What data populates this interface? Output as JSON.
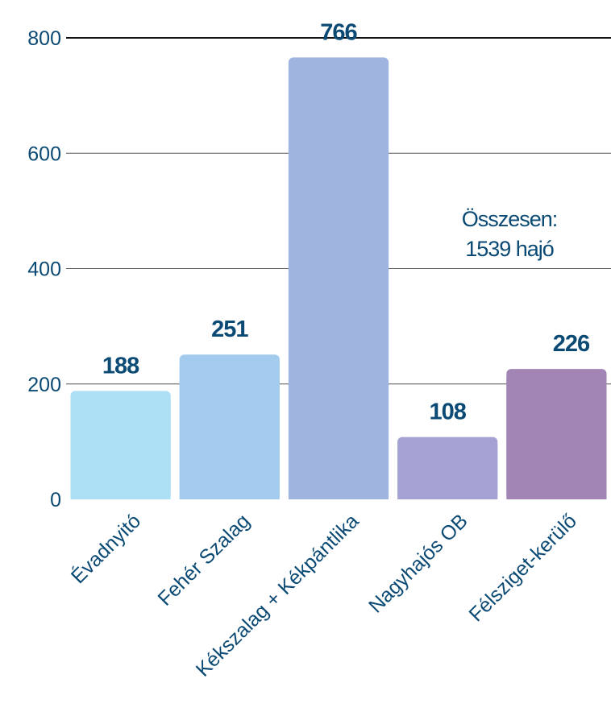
{
  "chart_data": {
    "type": "bar",
    "title": "",
    "xlabel": "",
    "ylabel": "",
    "ylim": [
      0,
      800
    ],
    "yticks": [
      0,
      200,
      400,
      600,
      800
    ],
    "grid": true,
    "categories": [
      "Évadnyitó",
      "Fehér Szalag",
      "Kékszalag + Kékpántlika",
      "Nagyhajós OB",
      "Félsziget-kerülő"
    ],
    "values": [
      188,
      251,
      766,
      108,
      226
    ],
    "data_labels": [
      "188",
      "251",
      "766",
      "108",
      "226"
    ],
    "colors": [
      "#ade0f5",
      "#a2cbee",
      "#9fb5e0",
      "#a3a2d2",
      "#a285b5"
    ],
    "text_color": "#0b4a74",
    "annotation": {
      "line1": "Összesen:",
      "line2": "1539 hajó"
    }
  }
}
